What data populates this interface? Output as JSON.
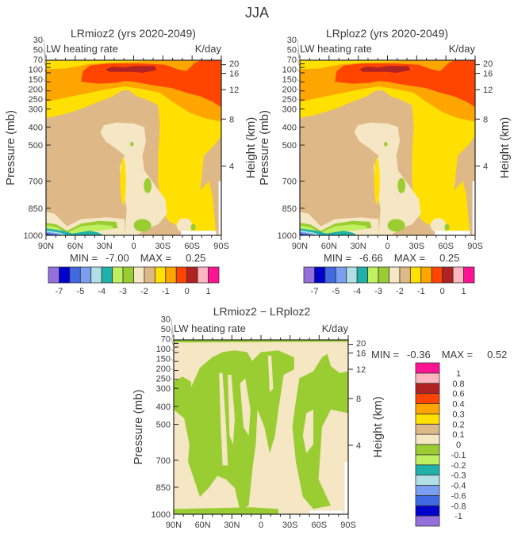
{
  "figure_title": "JJA",
  "colors": [
    "#9370db",
    "#0000cd",
    "#4169e1",
    "#7b9ff0",
    "#b0e0e6",
    "#20b2aa",
    "#c0f060",
    "#9acd32",
    "#f5e6c4",
    "#deb887",
    "#ffe000",
    "#ffa500",
    "#ff4500",
    "#b22222",
    "#ffb6c1",
    "#ff1493"
  ],
  "chart_data": [
    {
      "type": "contour",
      "title": "LRmioz2 (yrs 2020-2049)",
      "left_string": "LW heating rate",
      "right_string": "K/day",
      "ylabel": "Pressure (mb)",
      "ylabel_right": "Height (km)",
      "x_ticks": [
        "90N",
        "60N",
        "30N",
        "0",
        "30S",
        "60S",
        "90S"
      ],
      "y_ticks": [
        30,
        50,
        70,
        100,
        150,
        200,
        250,
        300,
        400,
        500,
        700,
        850,
        1000
      ],
      "y_ticks_right": [
        20,
        16,
        12,
        8,
        4
      ],
      "ylim": [
        1000,
        30
      ],
      "xlim": [
        "90N",
        "90S"
      ],
      "min_label": "MIN =",
      "min_value": "-7.00",
      "max_label": "MAX =",
      "max_value": "0.25",
      "colorbar_labels": [
        "-7",
        "",
        "-5",
        "",
        "-4",
        "",
        "-3",
        "",
        "-2",
        "",
        "-1",
        "",
        "0",
        "",
        "1"
      ],
      "colorbar_orientation": "horizontal"
    },
    {
      "type": "contour",
      "title": "LRploz2 (yrs 2020-2049)",
      "left_string": "LW heating rate",
      "right_string": "K/day",
      "ylabel": "Pressure (mb)",
      "ylabel_right": "Height (km)",
      "x_ticks": [
        "90N",
        "60N",
        "30N",
        "0",
        "30S",
        "60S",
        "90S"
      ],
      "y_ticks": [
        30,
        50,
        70,
        100,
        150,
        200,
        250,
        300,
        400,
        500,
        700,
        850,
        1000
      ],
      "y_ticks_right": [
        20,
        16,
        12,
        8,
        4
      ],
      "ylim": [
        1000,
        30
      ],
      "xlim": [
        "90N",
        "90S"
      ],
      "min_label": "MIN =",
      "min_value": "-6.66",
      "max_label": "MAX =",
      "max_value": "0.25",
      "colorbar_labels": [
        "-7",
        "",
        "-5",
        "",
        "-4",
        "",
        "-3",
        "",
        "-2",
        "",
        "-1",
        "",
        "0",
        "",
        "1"
      ],
      "colorbar_orientation": "horizontal"
    },
    {
      "type": "contour",
      "title": "LRmioz2 − LRploz2",
      "left_string": "LW heating rate",
      "right_string": "K/day",
      "ylabel": "Pressure (mb)",
      "ylabel_right": "Height (km)",
      "x_ticks": [
        "90N",
        "60N",
        "30N",
        "0",
        "30S",
        "60S",
        "90S"
      ],
      "y_ticks": [
        30,
        50,
        70,
        100,
        150,
        200,
        250,
        300,
        400,
        500,
        700,
        850,
        1000
      ],
      "y_ticks_right": [
        20,
        16,
        12,
        8,
        4
      ],
      "ylim": [
        1000,
        30
      ],
      "xlim": [
        "90N",
        "90S"
      ],
      "min_label": "MIN =",
      "min_value": "-0.36",
      "max_label": "MAX =",
      "max_value": "0.52",
      "colorbar_labels": [
        "-1",
        "-0.8",
        "-0.6",
        "-0.4",
        "-0.3",
        "-0.2",
        "-0.1",
        "0",
        "0.1",
        "0.2",
        "0.3",
        "0.4",
        "0.6",
        "0.8",
        "1"
      ],
      "colorbar_orientation": "vertical"
    }
  ]
}
